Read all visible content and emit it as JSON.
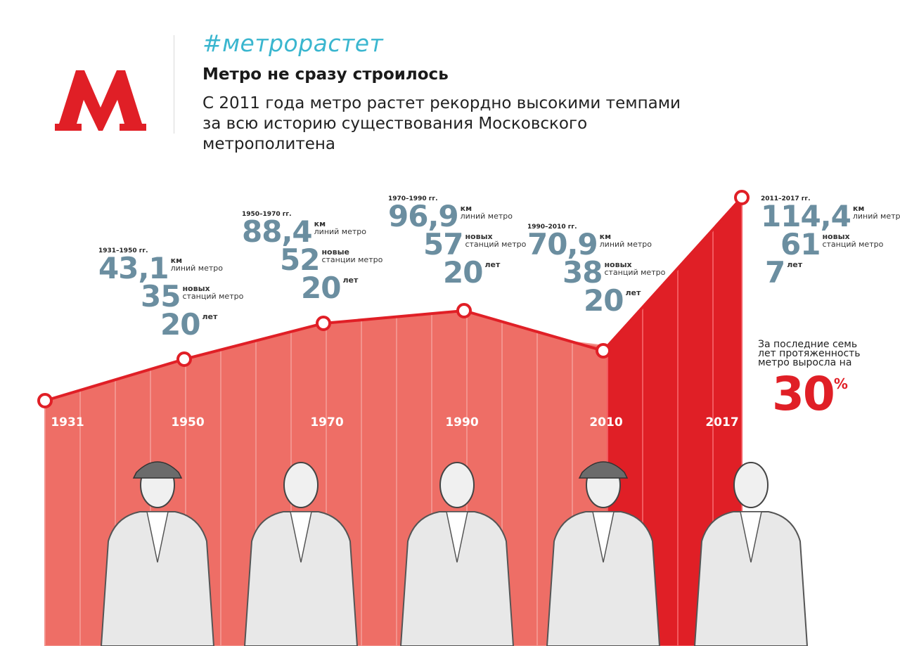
{
  "header": {
    "hashtag": "#метрорастет",
    "title": "Метро не сразу строилось",
    "subtitle": "С 2011 года метро растет рекордно высокими темпами за всю историю существования Московского метрополитена"
  },
  "colors": {
    "red": "#e01f26",
    "salmon": "#ee6e66",
    "teal": "#3ab6cf",
    "slate": "#6b8ea0"
  },
  "logo_icon": "moscow-metro-m-icon",
  "periods": [
    {
      "label": "1931–1950 гг.",
      "km": "43,1",
      "km_unit": "км",
      "km_desc": "линий метро",
      "stations": "35",
      "st_unit": "новых",
      "st_desc": "станций метро",
      "years": "20",
      "years_unit": "лет"
    },
    {
      "label": "1950–1970 гг.",
      "km": "88,4",
      "km_unit": "км",
      "km_desc": "линий метро",
      "stations": "52",
      "st_unit": "новые",
      "st_desc": "станции метро",
      "years": "20",
      "years_unit": "лет"
    },
    {
      "label": "1970–1990 гг.",
      "km": "96,9",
      "km_unit": "км",
      "km_desc": "линий метро",
      "stations": "57",
      "st_unit": "новых",
      "st_desc": "станций метро",
      "years": "20",
      "years_unit": "лет"
    },
    {
      "label": "1990–2010 гг.",
      "km": "70,9",
      "km_unit": "км",
      "km_desc": "линий метро",
      "stations": "38",
      "st_unit": "новых",
      "st_desc": "станций метро",
      "years": "20",
      "years_unit": "лет"
    },
    {
      "label": "2011–2017 гг.",
      "km": "114,4",
      "km_unit": "км",
      "km_desc": "линий метро",
      "stations": "61",
      "st_unit": "новых",
      "st_desc": "станций метро",
      "years": "7",
      "years_unit": "лет"
    }
  ],
  "growth": {
    "note": "За последние семь лет протяженность метро выросла на",
    "value": "30",
    "unit": "%"
  },
  "chart_data": {
    "type": "area",
    "x": [
      "1931",
      "1950",
      "1970",
      "1990",
      "2010",
      "2017"
    ],
    "values": [
      0,
      43.1,
      88.4,
      96.9,
      70.9,
      114.4
    ],
    "ylim": [
      0,
      120
    ]
  }
}
